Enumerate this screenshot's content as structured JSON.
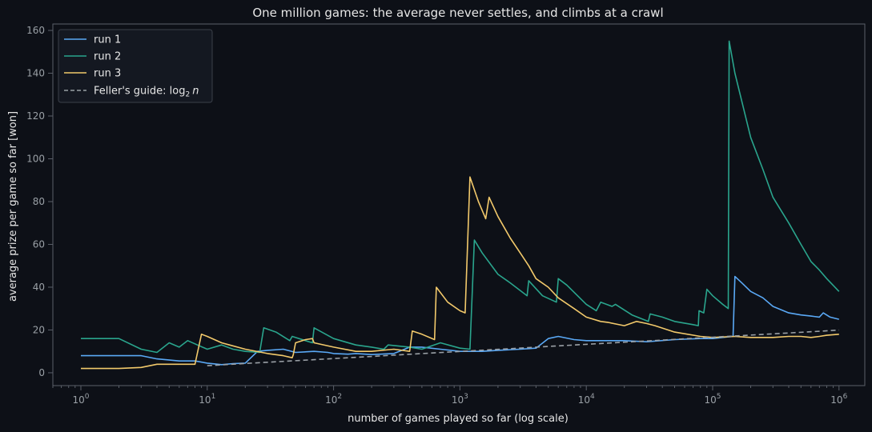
{
  "chart_data": {
    "type": "line",
    "title": "One million games: the average never settles, and climbs at a crawl",
    "xlabel": "number of games played so far (log scale)",
    "ylabel": "average prize per game so far [won]",
    "xscale": "log",
    "xlim": [
      0.6,
      1600000
    ],
    "ylim": [
      -6,
      163
    ],
    "grid": false,
    "legend_position": "top-left",
    "x_ticks": [
      {
        "value": 1,
        "base": "10",
        "exp": "0"
      },
      {
        "value": 10,
        "base": "10",
        "exp": "1"
      },
      {
        "value": 100,
        "base": "10",
        "exp": "2"
      },
      {
        "value": 1000,
        "base": "10",
        "exp": "3"
      },
      {
        "value": 10000,
        "base": "10",
        "exp": "4"
      },
      {
        "value": 100000,
        "base": "10",
        "exp": "5"
      },
      {
        "value": 1000000,
        "base": "10",
        "exp": "6"
      }
    ],
    "y_ticks": [
      0,
      20,
      40,
      60,
      80,
      100,
      120,
      140,
      160
    ],
    "colors": {
      "background": "#0d1017",
      "text": "#e6e6e6",
      "tick_label": "#9aa0a6",
      "axis": "#5a5f69",
      "run1": "#5aa9f6",
      "run2": "#2aa58d",
      "run3": "#f2c96b",
      "guide": "#9aa0a6"
    },
    "legend": {
      "run1": "run 1",
      "run2": "run 2",
      "run3": "run 3",
      "guide_prefix": "Feller's guide: log",
      "guide_sub": "2",
      "guide_var": "n"
    },
    "series": [
      {
        "name": "run 1",
        "color": "#5aa9f6",
        "points": [
          [
            1,
            8
          ],
          [
            2,
            8
          ],
          [
            3,
            8
          ],
          [
            4,
            6.5
          ],
          [
            6,
            5.5
          ],
          [
            8,
            5.5
          ],
          [
            10,
            4.5
          ],
          [
            13,
            3.8
          ],
          [
            16,
            4.3
          ],
          [
            20,
            4.5
          ],
          [
            25,
            10
          ],
          [
            30,
            10.5
          ],
          [
            40,
            11
          ],
          [
            50,
            9.5
          ],
          [
            70,
            10
          ],
          [
            90,
            9.5
          ],
          [
            100,
            9
          ],
          [
            130,
            8.7
          ],
          [
            150,
            9
          ],
          [
            200,
            8.5
          ],
          [
            300,
            9
          ],
          [
            400,
            12
          ],
          [
            500,
            12
          ],
          [
            700,
            11
          ],
          [
            1000,
            10
          ],
          [
            1500,
            10
          ],
          [
            2000,
            10.5
          ],
          [
            3000,
            11
          ],
          [
            4000,
            11.5
          ],
          [
            5000,
            16
          ],
          [
            6000,
            17
          ],
          [
            8000,
            15.5
          ],
          [
            10000,
            15
          ],
          [
            20000,
            15
          ],
          [
            30000,
            14.5
          ],
          [
            50000,
            15.5
          ],
          [
            80000,
            16
          ],
          [
            100000,
            16
          ],
          [
            120000,
            16.5
          ],
          [
            145000,
            17
          ],
          [
            150000,
            45
          ],
          [
            170000,
            42
          ],
          [
            200000,
            38
          ],
          [
            250000,
            35
          ],
          [
            300000,
            31
          ],
          [
            400000,
            28
          ],
          [
            500000,
            27
          ],
          [
            600000,
            26.5
          ],
          [
            700000,
            26
          ],
          [
            750000,
            28
          ],
          [
            850000,
            26
          ],
          [
            1000000,
            25
          ]
        ]
      },
      {
        "name": "run 2",
        "color": "#2aa58d",
        "points": [
          [
            1,
            16
          ],
          [
            2,
            16
          ],
          [
            3,
            11
          ],
          [
            4,
            9.5
          ],
          [
            5,
            14
          ],
          [
            6,
            12
          ],
          [
            7,
            15
          ],
          [
            10,
            11
          ],
          [
            13,
            13
          ],
          [
            16,
            11
          ],
          [
            20,
            10
          ],
          [
            26,
            9.5
          ],
          [
            28,
            21
          ],
          [
            35,
            19
          ],
          [
            45,
            15
          ],
          [
            47,
            17
          ],
          [
            60,
            15
          ],
          [
            68,
            14
          ],
          [
            70,
            21
          ],
          [
            100,
            16
          ],
          [
            150,
            13
          ],
          [
            200,
            12
          ],
          [
            250,
            11
          ],
          [
            270,
            13
          ],
          [
            400,
            12
          ],
          [
            500,
            11
          ],
          [
            700,
            14
          ],
          [
            1000,
            11.5
          ],
          [
            1200,
            11
          ],
          [
            1300,
            62
          ],
          [
            1500,
            56
          ],
          [
            2000,
            46
          ],
          [
            2500,
            42
          ],
          [
            3400,
            36
          ],
          [
            3500,
            43
          ],
          [
            4500,
            36
          ],
          [
            5800,
            33
          ],
          [
            6000,
            44
          ],
          [
            7000,
            41
          ],
          [
            10000,
            32
          ],
          [
            12000,
            29
          ],
          [
            13000,
            33
          ],
          [
            16000,
            31
          ],
          [
            17000,
            32
          ],
          [
            23000,
            27
          ],
          [
            31000,
            24
          ],
          [
            32000,
            27.5
          ],
          [
            40000,
            26
          ],
          [
            50000,
            24
          ],
          [
            70000,
            22.5
          ],
          [
            77000,
            22
          ],
          [
            78000,
            29
          ],
          [
            85000,
            28
          ],
          [
            90000,
            39
          ],
          [
            100000,
            36
          ],
          [
            120000,
            32
          ],
          [
            133000,
            30
          ],
          [
            135000,
            155
          ],
          [
            150000,
            140
          ],
          [
            200000,
            110
          ],
          [
            250000,
            95
          ],
          [
            300000,
            82
          ],
          [
            400000,
            70
          ],
          [
            500000,
            60
          ],
          [
            600000,
            52
          ],
          [
            700000,
            48
          ],
          [
            800000,
            44
          ],
          [
            1000000,
            38
          ]
        ]
      },
      {
        "name": "run 3",
        "color": "#f2c96b",
        "points": [
          [
            1,
            2
          ],
          [
            2,
            2
          ],
          [
            3,
            2.5
          ],
          [
            4,
            4
          ],
          [
            5,
            4
          ],
          [
            7,
            4
          ],
          [
            8,
            4
          ],
          [
            9,
            18
          ],
          [
            10,
            17
          ],
          [
            13,
            14
          ],
          [
            15,
            13
          ],
          [
            20,
            11
          ],
          [
            30,
            9
          ],
          [
            40,
            8
          ],
          [
            47,
            7
          ],
          [
            48,
            8.5
          ],
          [
            50,
            14
          ],
          [
            60,
            15.5
          ],
          [
            68,
            16
          ],
          [
            70,
            14
          ],
          [
            100,
            12
          ],
          [
            150,
            10
          ],
          [
            200,
            10
          ],
          [
            300,
            11
          ],
          [
            400,
            10
          ],
          [
            420,
            19.5
          ],
          [
            500,
            18
          ],
          [
            630,
            15.5
          ],
          [
            650,
            40
          ],
          [
            800,
            33
          ],
          [
            1000,
            29
          ],
          [
            1100,
            28
          ],
          [
            1200,
            91.5
          ],
          [
            1400,
            80
          ],
          [
            1600,
            72
          ],
          [
            1700,
            82
          ],
          [
            2000,
            73
          ],
          [
            2500,
            63
          ],
          [
            3000,
            56
          ],
          [
            3500,
            50
          ],
          [
            4000,
            44
          ],
          [
            5000,
            40
          ],
          [
            6000,
            35
          ],
          [
            8000,
            30
          ],
          [
            10000,
            26
          ],
          [
            13000,
            24
          ],
          [
            15000,
            23.5
          ],
          [
            20000,
            22
          ],
          [
            25000,
            24
          ],
          [
            30000,
            23
          ],
          [
            35000,
            22
          ],
          [
            50000,
            19
          ],
          [
            80000,
            17
          ],
          [
            100000,
            16.5
          ],
          [
            150000,
            17
          ],
          [
            200000,
            16.5
          ],
          [
            300000,
            16.5
          ],
          [
            400000,
            17
          ],
          [
            500000,
            17
          ],
          [
            600000,
            16.5
          ],
          [
            700000,
            17
          ],
          [
            800000,
            17.5
          ],
          [
            1000000,
            18
          ]
        ]
      }
    ],
    "guide": {
      "name": "Feller's guide",
      "color": "#9aa0a6",
      "xmin": 10,
      "xmax": 1000000
    }
  }
}
